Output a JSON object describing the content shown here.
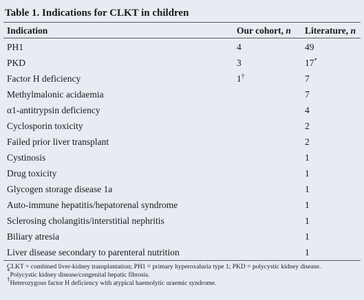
{
  "table": {
    "title": "Table 1. Indications for CLKT in children",
    "headers": {
      "indication": "Indication",
      "our_cohort": "Our cohort, ",
      "our_cohort_var": "n",
      "literature": "Literature, ",
      "literature_var": "n"
    },
    "rows": [
      {
        "indication": "PH1",
        "our": "4",
        "our_sup": "",
        "lit": "49",
        "lit_sup": ""
      },
      {
        "indication": "PKD",
        "our": "3",
        "our_sup": "",
        "lit": "17",
        "lit_sup": "*"
      },
      {
        "indication": "Factor H deficiency",
        "our": "1",
        "our_sup": "†",
        "lit": "7",
        "lit_sup": ""
      },
      {
        "indication": "Methylmalonic acidaemia",
        "our": "",
        "our_sup": "",
        "lit": "7",
        "lit_sup": ""
      },
      {
        "indication": "α1-antitrypsin deficiency",
        "our": "",
        "our_sup": "",
        "lit": "4",
        "lit_sup": ""
      },
      {
        "indication": "Cyclosporin toxicity",
        "our": "",
        "our_sup": "",
        "lit": "2",
        "lit_sup": ""
      },
      {
        "indication": "Failed prior liver transplant",
        "our": "",
        "our_sup": "",
        "lit": "2",
        "lit_sup": ""
      },
      {
        "indication": "Cystinosis",
        "our": "",
        "our_sup": "",
        "lit": "1",
        "lit_sup": ""
      },
      {
        "indication": "Drug toxicity",
        "our": "",
        "our_sup": "",
        "lit": "1",
        "lit_sup": ""
      },
      {
        "indication": "Glycogen storage disease 1a",
        "our": "",
        "our_sup": "",
        "lit": "1",
        "lit_sup": ""
      },
      {
        "indication": "Auto-immune hepatitis/hepatorenal syndrome",
        "our": "",
        "our_sup": "",
        "lit": "1",
        "lit_sup": ""
      },
      {
        "indication": "Sclerosing cholangitis/interstitial nephritis",
        "our": "",
        "our_sup": "",
        "lit": "1",
        "lit_sup": ""
      },
      {
        "indication": "Biliary atresia",
        "our": "",
        "our_sup": "",
        "lit": "1",
        "lit_sup": ""
      },
      {
        "indication": "Liver disease secondary to parenteral nutrition",
        "our": "",
        "our_sup": "",
        "lit": "1",
        "lit_sup": ""
      }
    ],
    "footnotes": {
      "abbrev": "CLKT = combined liver-kidney transplantation; PH1 = primary hyperoxaluria type 1; PKD = polycystic kidney disease.",
      "star_mark": "*",
      "star_text": "Polycystic kidney disease/congenital hepatic fibrosis.",
      "dagger_mark": "†",
      "dagger_text": "Heterozygous factor H deficiency with atypical haemolytic uraemic syndrome."
    }
  }
}
